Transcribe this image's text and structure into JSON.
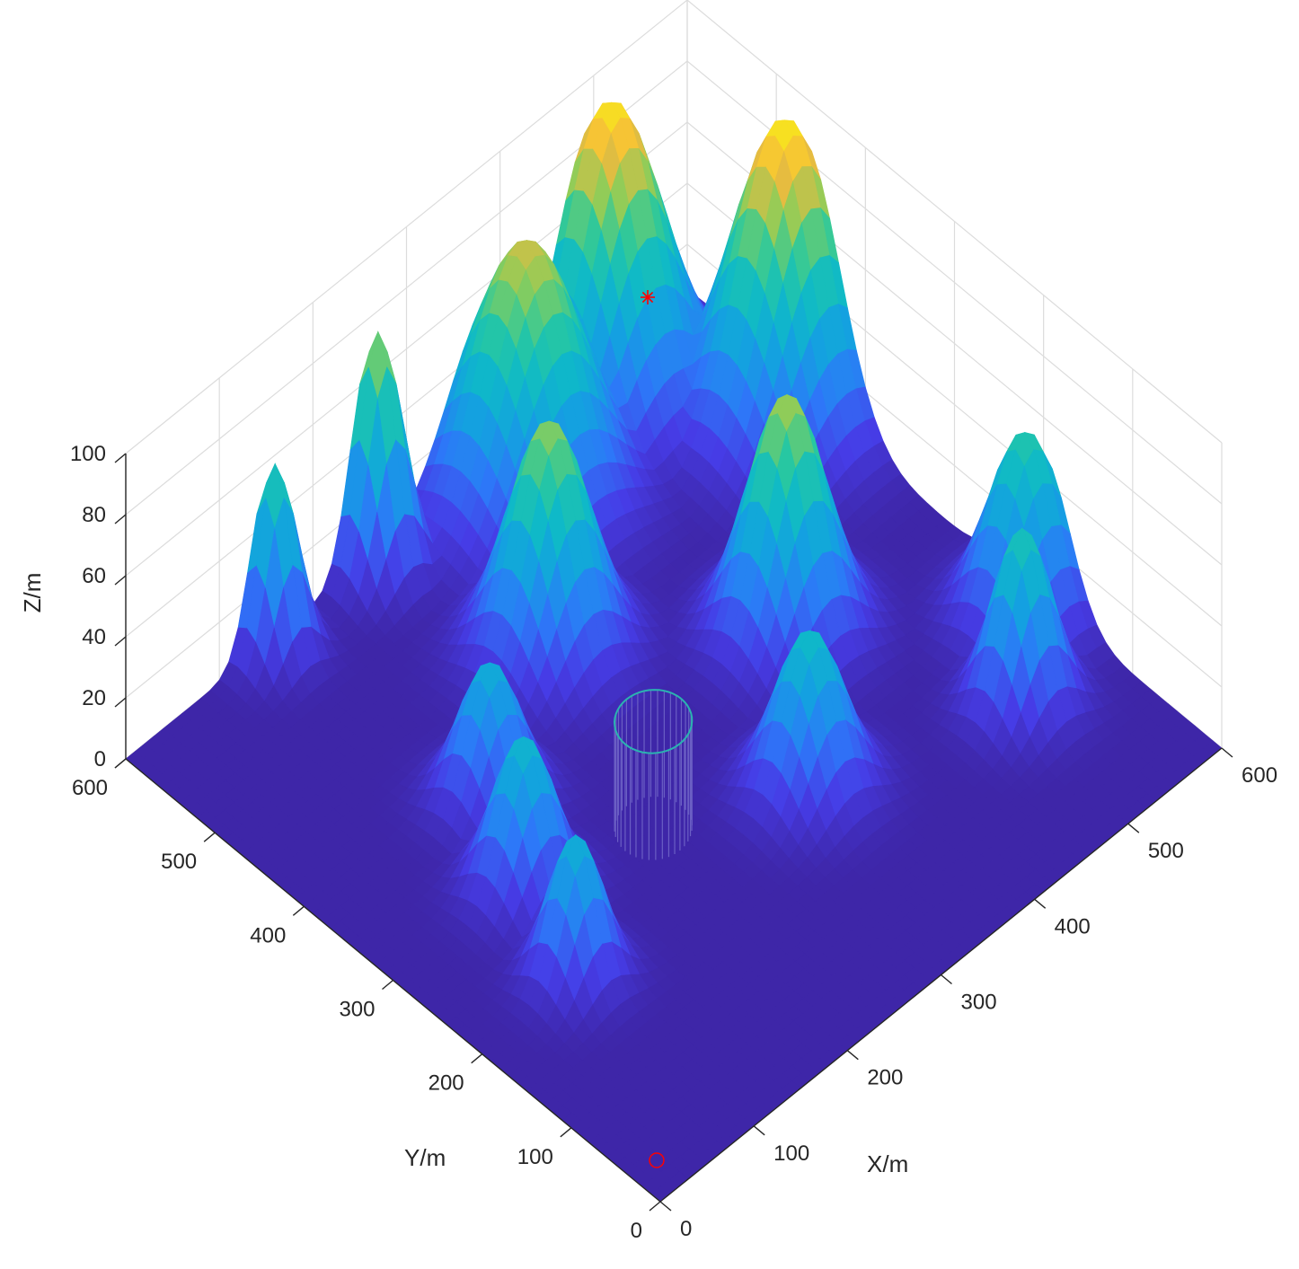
{
  "chart_data": {
    "type": "surface",
    "title": "",
    "xlabel": "X/m",
    "ylabel": "Y/m",
    "zlabel": "Z/m",
    "xlim": [
      0,
      600
    ],
    "ylim": [
      0,
      600
    ],
    "zlim": [
      0,
      100
    ],
    "xticks": [
      "0",
      "100",
      "200",
      "300",
      "400",
      "500",
      "600"
    ],
    "yticks": [
      "0",
      "100",
      "200",
      "300",
      "400",
      "500",
      "600"
    ],
    "zticks": [
      "0",
      "20",
      "40",
      "60",
      "80",
      "100"
    ],
    "grid": true,
    "colormap": "parula",
    "colors": {
      "low": "#3e26a8",
      "mid": "#1fb0c4",
      "high": "#f9fb0e"
    },
    "peaks": [
      {
        "x": 500,
        "y": 580,
        "height": 96,
        "sigma": 42
      },
      {
        "x": 580,
        "y": 470,
        "height": 97,
        "sigma": 42
      },
      {
        "x": 390,
        "y": 560,
        "height": 82,
        "sigma": 45
      },
      {
        "x": 300,
        "y": 440,
        "height": 75,
        "sigma": 33
      },
      {
        "x": 440,
        "y": 320,
        "height": 78,
        "sigma": 32
      },
      {
        "x": 260,
        "y": 590,
        "height": 78,
        "sigma": 20
      },
      {
        "x": 150,
        "y": 590,
        "height": 62,
        "sigma": 18
      },
      {
        "x": 350,
        "y": 200,
        "height": 52,
        "sigma": 28
      },
      {
        "x": 580,
        "y": 200,
        "height": 60,
        "sigma": 30
      },
      {
        "x": 520,
        "y": 140,
        "height": 58,
        "sigma": 24
      },
      {
        "x": 170,
        "y": 370,
        "height": 45,
        "sigma": 25
      },
      {
        "x": 130,
        "y": 290,
        "height": 50,
        "sigma": 25
      },
      {
        "x": 100,
        "y": 200,
        "height": 47,
        "sigma": 22
      }
    ],
    "obstacle": {
      "type": "cylinder",
      "x": 240,
      "y": 260,
      "radius": 30,
      "height": 35
    },
    "start": {
      "x": 0,
      "y": 0,
      "z": 0,
      "marker": "circle",
      "color": "#ff0000"
    },
    "goal": {
      "x": 600,
      "y": 600,
      "z": 40,
      "marker": "asterisk",
      "color": "#ff0000"
    }
  }
}
